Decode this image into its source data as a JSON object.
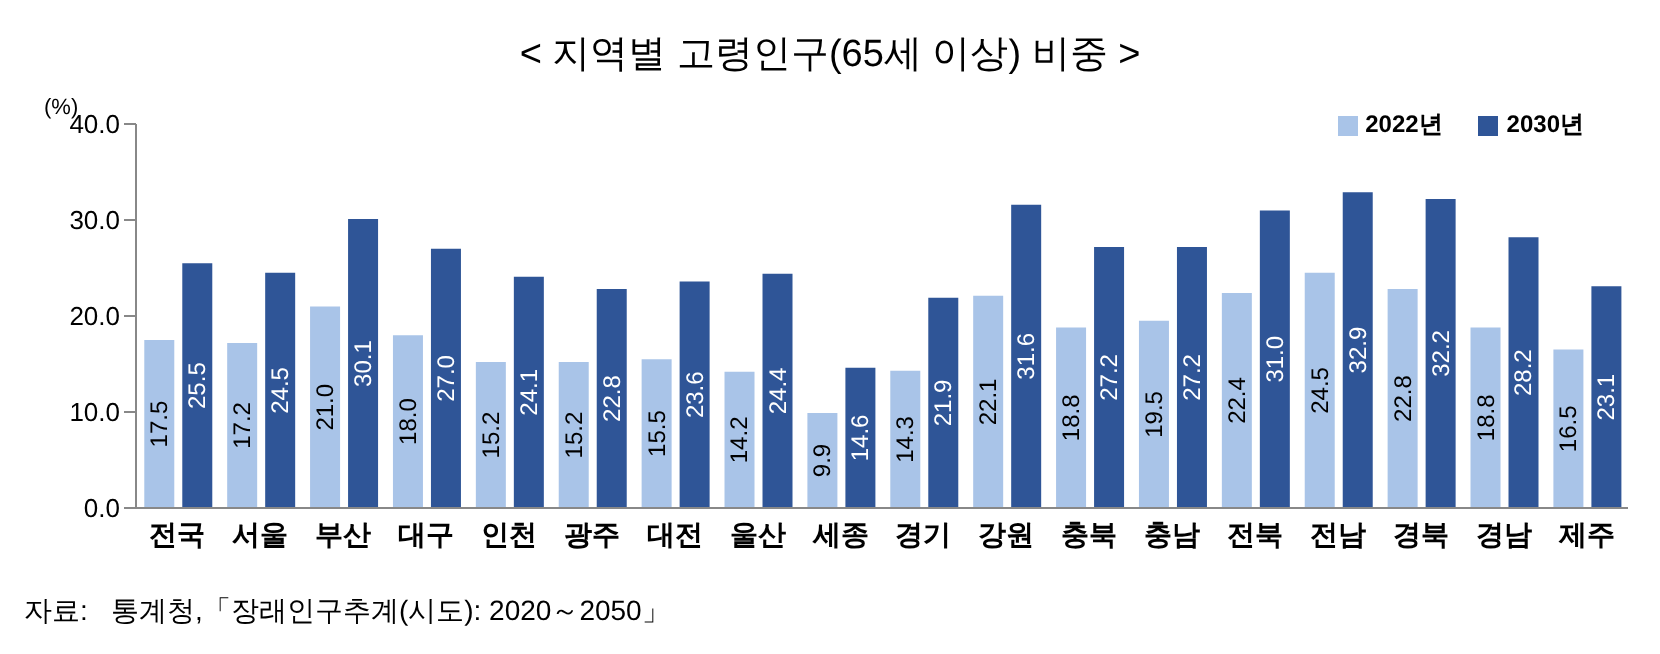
{
  "chart_data": {
    "type": "bar",
    "title": "< 지역별 고령인구(65세 이상) 비중 >",
    "ylabel": "(%)",
    "categories": [
      "전국",
      "서울",
      "부산",
      "대구",
      "인천",
      "광주",
      "대전",
      "울산",
      "세종",
      "경기",
      "강원",
      "충북",
      "충남",
      "전북",
      "전남",
      "경북",
      "경남",
      "제주"
    ],
    "series": [
      {
        "name": "2022년",
        "color": "#a9c4e8",
        "values": [
          17.5,
          17.2,
          21.0,
          18.0,
          15.2,
          15.2,
          15.5,
          14.2,
          9.9,
          14.3,
          22.1,
          18.8,
          19.5,
          22.4,
          24.5,
          22.8,
          18.8,
          16.5
        ],
        "value_labels": [
          "17.5",
          "17.2",
          "21.0",
          "18.0",
          "15.2",
          "15.2",
          "15.5",
          "14.2",
          "9.9",
          "14.3",
          "22.1",
          "18.8",
          "19.5",
          "22.4",
          "24.5",
          "22.8",
          "18.8",
          "16.5"
        ]
      },
      {
        "name": "2030년",
        "color": "#2f5597",
        "values": [
          25.5,
          24.5,
          30.1,
          27.0,
          24.1,
          22.8,
          23.6,
          24.4,
          14.6,
          21.9,
          31.6,
          27.2,
          27.2,
          31.0,
          32.9,
          32.2,
          28.2,
          23.1
        ],
        "value_labels": [
          "25.5",
          "24.5",
          "30.1",
          "27.0",
          "24.1",
          "22.8",
          "23.6",
          "24.4",
          "14.6",
          "21.9",
          "31.6",
          "27.2",
          "27.2",
          "31.0",
          "32.9",
          "32.2",
          "28.2",
          "23.1"
        ]
      }
    ],
    "ylim": [
      0,
      40
    ],
    "yticks": [
      {
        "value": 0,
        "label": "0.0"
      },
      {
        "value": 10,
        "label": "10.0"
      },
      {
        "value": 20,
        "label": "20.0"
      },
      {
        "value": 30,
        "label": "30.0"
      },
      {
        "value": 40,
        "label": "40.0"
      }
    ],
    "grid": false,
    "legend": "top right",
    "annotations": [
      "자료:   통계청,「장래인구추계(시도): 2020～2050」"
    ]
  }
}
